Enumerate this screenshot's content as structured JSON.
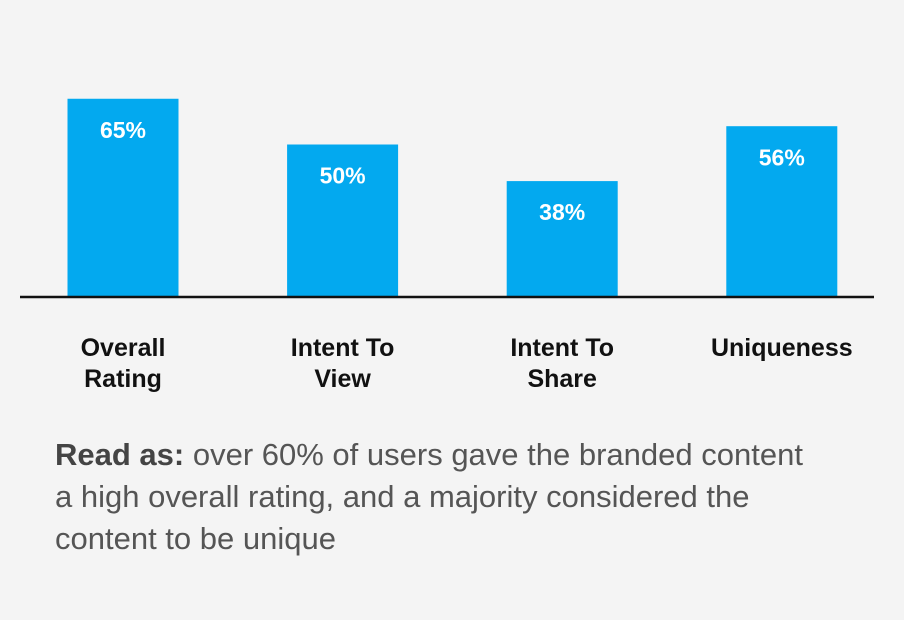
{
  "chart_data": {
    "type": "bar",
    "categories": [
      "Overall Rating",
      "Intent To View",
      "Intent To Share",
      "Uniqueness"
    ],
    "values": [
      65,
      50,
      38,
      56
    ],
    "value_labels": [
      "65%",
      "50%",
      "38%",
      "56%"
    ],
    "color": "#03a9ef",
    "note": {
      "lead": "Read as:",
      "text": "over 60% of users gave the branded content a high overall rating, and a majority considered the content to be unique"
    }
  }
}
